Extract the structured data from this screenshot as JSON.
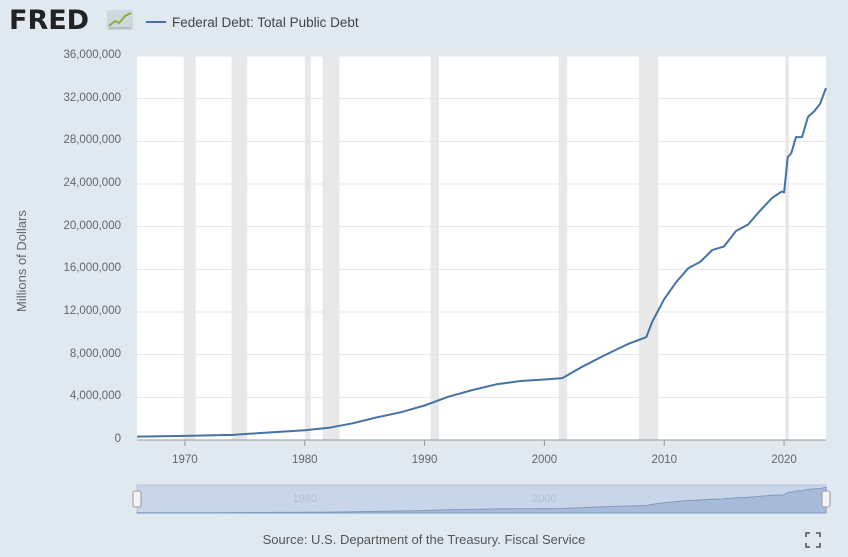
{
  "header": {
    "logo_text": "FRED",
    "legend_label": "Federal Debt: Total Public Debt"
  },
  "colors": {
    "background": "#e1e9f0",
    "plot_background": "#ffffff",
    "series_line": "#4572a7",
    "recession_band": "#e8e8e8",
    "navigator_fill": "#c9d6ea"
  },
  "source_text": "Source: U.S. Department of the Treasury. Fiscal Service",
  "icons": {
    "fullscreen": "fullscreen-icon",
    "logo": "fred-chart-logo-icon"
  },
  "navigator": {
    "labels": [
      "1980",
      "2000"
    ]
  },
  "chart_data": {
    "type": "line",
    "title": "",
    "xlabel": "",
    "ylabel": "Millions of Dollars",
    "xlim": [
      1966,
      2023.5
    ],
    "ylim": [
      0,
      36000000
    ],
    "legend": "top-left",
    "grid": true,
    "yticks": [
      0,
      4000000,
      8000000,
      12000000,
      16000000,
      20000000,
      24000000,
      28000000,
      32000000,
      36000000
    ],
    "ytick_labels": [
      "0",
      "4,000,000",
      "8,000,000",
      "12,000,000",
      "16,000,000",
      "20,000,000",
      "24,000,000",
      "28,000,000",
      "32,000,000",
      "36,000,000"
    ],
    "xticks": [
      1970,
      1980,
      1990,
      2000,
      2010,
      2020
    ],
    "xtick_labels": [
      "1970",
      "1980",
      "1990",
      "2000",
      "2010",
      "2020"
    ],
    "recessions": [
      [
        1969.9,
        1970.9
      ],
      [
        1973.9,
        1975.2
      ],
      [
        1980.0,
        1980.5
      ],
      [
        1981.5,
        1982.9
      ],
      [
        1990.5,
        1991.2
      ],
      [
        2001.2,
        2001.9
      ],
      [
        2007.9,
        2009.5
      ],
      [
        2020.1,
        2020.4
      ]
    ],
    "series": [
      {
        "name": "Federal Debt: Total Public Debt",
        "x": [
          1966,
          1968,
          1970,
          1972,
          1974,
          1976,
          1978,
          1980,
          1982,
          1984,
          1986,
          1988,
          1990,
          1992,
          1994,
          1996,
          1998,
          2000,
          2001.5,
          2003,
          2005,
          2007,
          2008.5,
          2009,
          2010,
          2011,
          2012,
          2013,
          2014,
          2015,
          2016,
          2017,
          2018,
          2019,
          2019.8,
          2020.0,
          2020.3,
          2020.6,
          2021,
          2021.5,
          2022,
          2022.5,
          2023,
          2023.5
        ],
        "y": [
          320000,
          350000,
          380000,
          430000,
          480000,
          630000,
          780000,
          910000,
          1140000,
          1570000,
          2120000,
          2600000,
          3230000,
          4060000,
          4690000,
          5220000,
          5530000,
          5670000,
          5800000,
          6780000,
          7930000,
          9010000,
          9650000,
          11100000,
          13200000,
          14800000,
          16100000,
          16700000,
          17800000,
          18150000,
          19600000,
          20200000,
          21500000,
          22700000,
          23300000,
          23200000,
          26500000,
          26900000,
          28400000,
          28400000,
          30300000,
          30800000,
          31500000,
          33000000
        ]
      }
    ]
  }
}
